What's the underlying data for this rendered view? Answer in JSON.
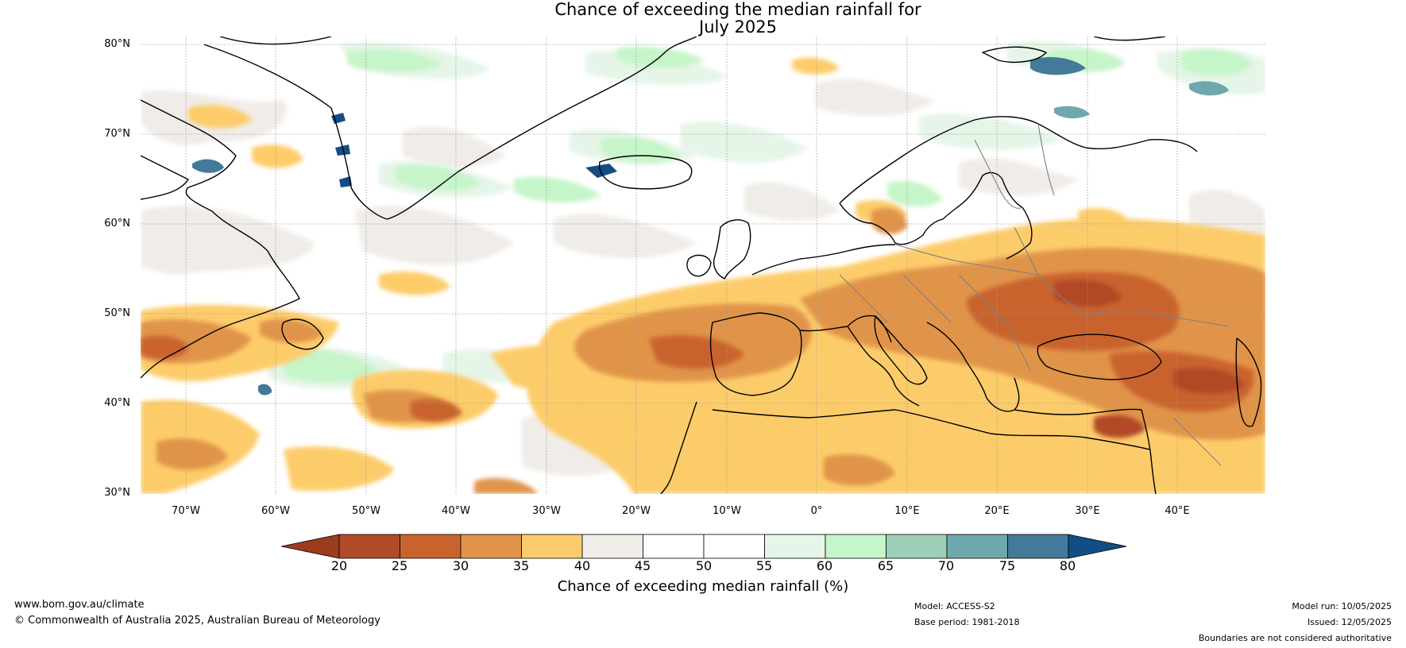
{
  "title_line1": "Chance of exceeding the median rainfall for",
  "title_line2": "July 2025",
  "lat_labels": [
    "80°N",
    "70°N",
    "60°N",
    "50°N",
    "40°N",
    "30°N"
  ],
  "lon_labels": [
    "70°W",
    "60°W",
    "50°W",
    "40°W",
    "30°W",
    "20°W",
    "10°W",
    "0°",
    "10°E",
    "20°E",
    "30°E",
    "40°E"
  ],
  "colorbar": {
    "ticks": [
      "20",
      "25",
      "30",
      "35",
      "40",
      "45",
      "50",
      "55",
      "60",
      "65",
      "70",
      "75",
      "80"
    ],
    "colors": [
      "#9c3d1e",
      "#b14a28",
      "#c9632e",
      "#e0944a",
      "#fdcc6a",
      "#f0ece8",
      "#ffffff",
      "#ffffff",
      "#e5f5e8",
      "#c5f5c8",
      "#9ccfb8",
      "#6fa8ac",
      "#447a99",
      "#134d85"
    ],
    "label": "Chance of exceeding median rainfall (%)"
  },
  "footer": {
    "url": "www.bom.gov.au/climate",
    "copyright": "© Commonwealth of Australia 2025, Australian Bureau of Meteorology",
    "model": "Model: ACCESS-S2",
    "base_period": "Base period: 1981-2018",
    "model_run": "Model run: 10/05/2025",
    "issued": "Issued: 12/05/2025",
    "disclaimer": "Boundaries are not considered authoritative"
  }
}
